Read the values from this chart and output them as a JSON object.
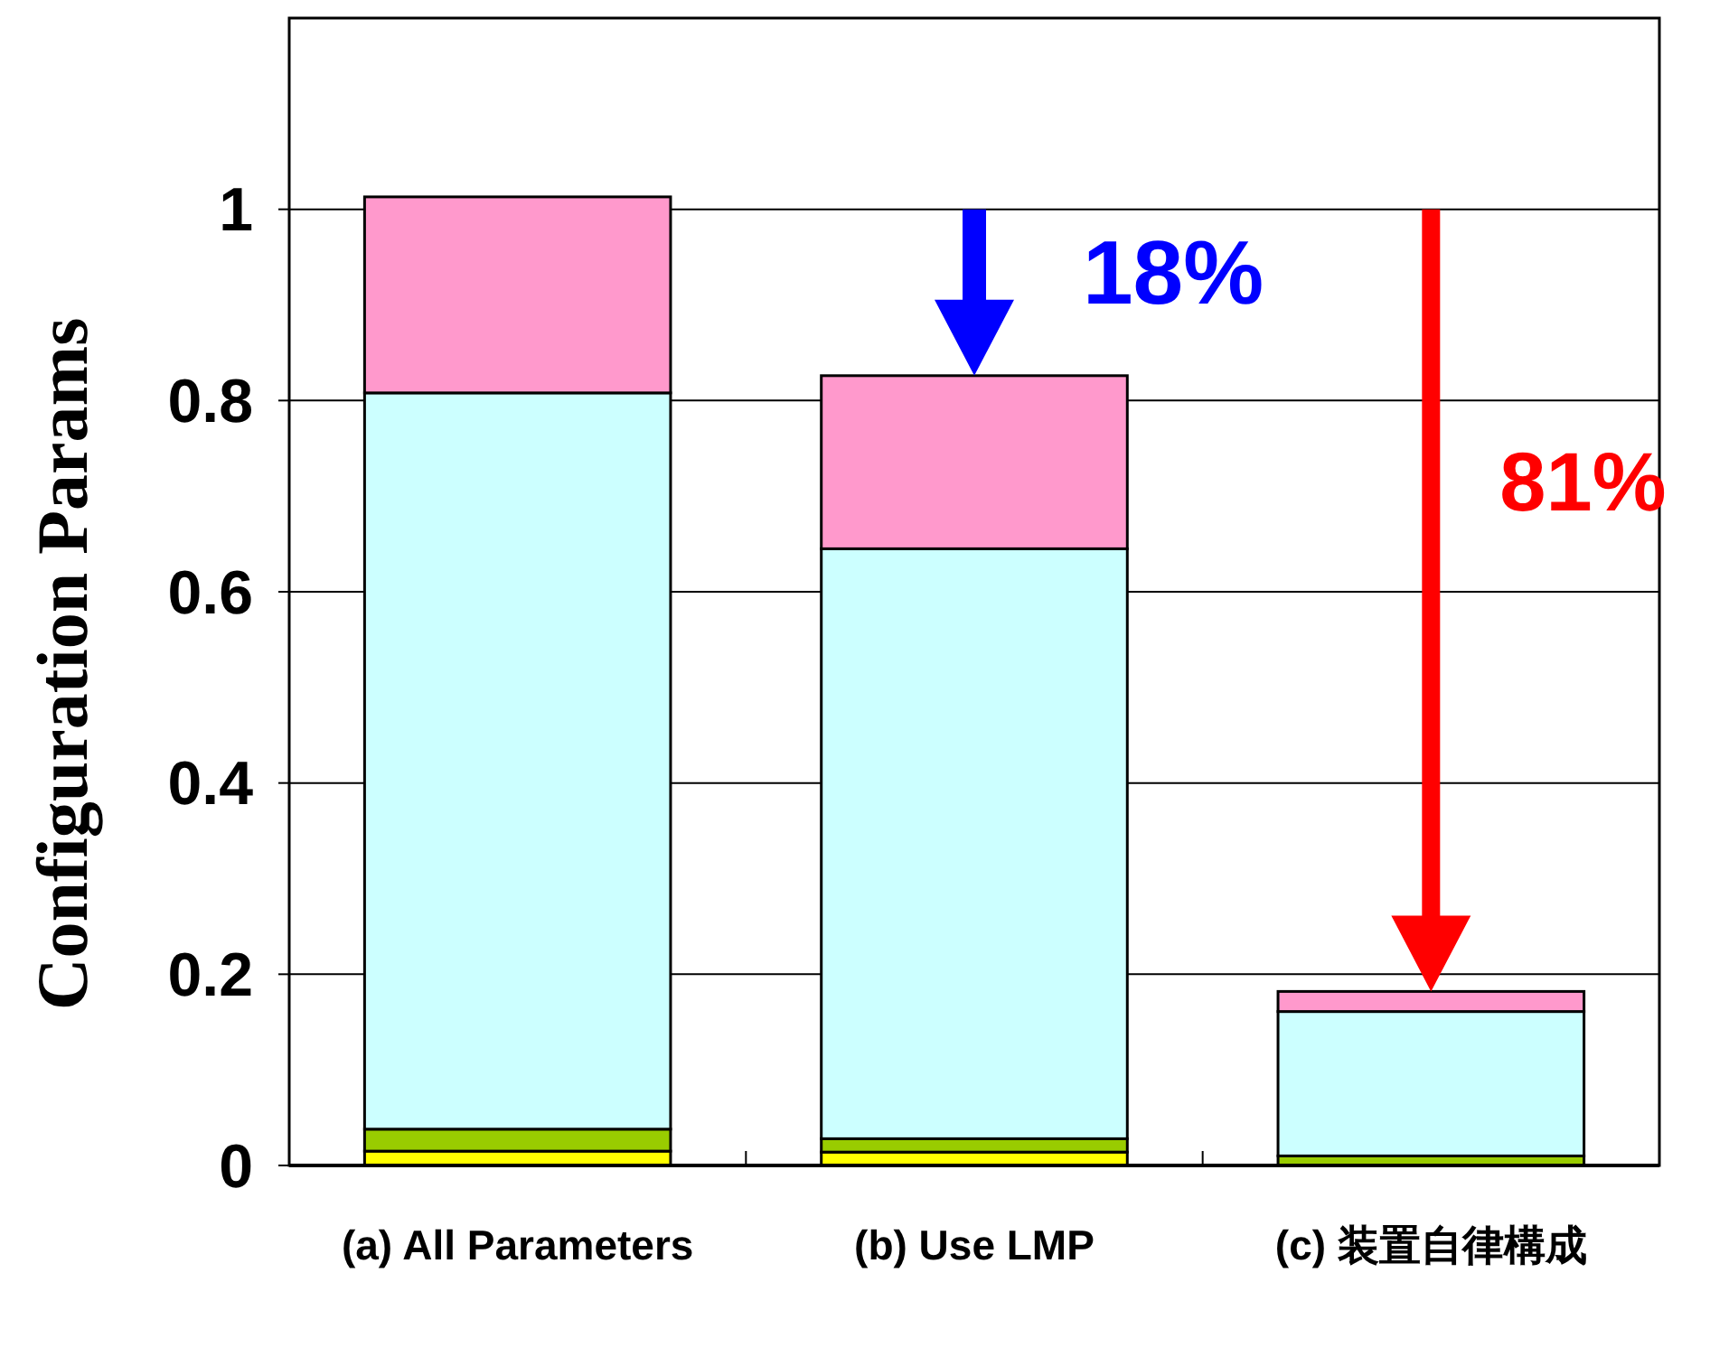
{
  "chart_data": {
    "type": "bar",
    "stacked": true,
    "ylabel": "Configuration Params",
    "categories": [
      "(a) All Parameters",
      "(b) Use LMP",
      "(c) 装置自律構成"
    ],
    "series": [
      {
        "color": "#ffff00",
        "values": [
          0.015,
          0.014,
          null
        ]
      },
      {
        "color": "#99cc00",
        "values": [
          0.023,
          0.014,
          0.01
        ]
      },
      {
        "color": "#ccffff",
        "values": [
          0.77,
          0.617,
          0.151
        ]
      },
      {
        "color": "#ff99cc",
        "values": [
          0.205,
          0.181,
          0.021
        ]
      }
    ],
    "ylim": [
      0,
      1.2
    ],
    "yticks": [
      0,
      0.2,
      0.4,
      0.6,
      0.8,
      1
    ],
    "grid": "y",
    "annotations": [
      "18%",
      "81%"
    ]
  }
}
